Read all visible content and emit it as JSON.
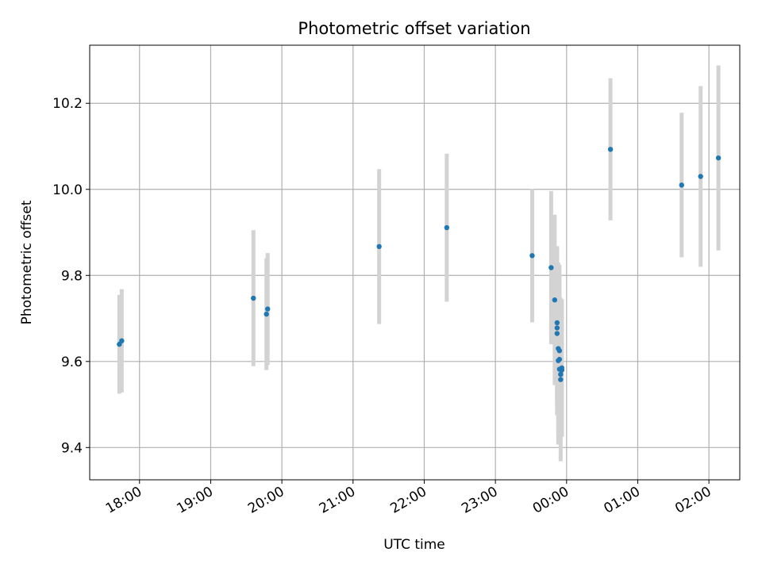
{
  "chart_data": {
    "type": "scatter",
    "title": "Photometric offset variation",
    "xlabel": "UTC time",
    "ylabel": "Photometric offset",
    "x_tick_labels": [
      "18:00",
      "19:00",
      "20:00",
      "21:00",
      "22:00",
      "23:00",
      "00:00",
      "01:00",
      "02:00"
    ],
    "y_tick_labels": [
      "9.4",
      "9.6",
      "9.8",
      "10.0",
      "10.2"
    ],
    "y_ticks": [
      9.4,
      9.6,
      9.8,
      10.0,
      10.2
    ],
    "ylim": [
      9.325,
      10.335
    ],
    "xlim": [
      "17:18",
      "02:26"
    ],
    "grid": true,
    "colors": {
      "point": "#1f77b4",
      "errorbar": "#d3d3d3",
      "grid": "#b0b0b0",
      "axis": "#000000"
    },
    "points": [
      {
        "x": "17:43",
        "y": 9.64,
        "err": 0.115
      },
      {
        "x": "17:45",
        "y": 9.648,
        "err": 0.12
      },
      {
        "x": "19:36",
        "y": 9.747,
        "err": 0.158
      },
      {
        "x": "19:47",
        "y": 9.71,
        "err": 0.13
      },
      {
        "x": "19:48",
        "y": 9.722,
        "err": 0.13
      },
      {
        "x": "21:22",
        "y": 9.867,
        "err": 0.18
      },
      {
        "x": "22:19",
        "y": 9.911,
        "err": 0.172
      },
      {
        "x": "23:31",
        "y": 9.846,
        "err": 0.155
      },
      {
        "x": "23:47",
        "y": 9.818,
        "err": 0.178
      },
      {
        "x": "23:50",
        "y": 9.743,
        "err": 0.198
      },
      {
        "x": "23:52",
        "y": 9.69,
        "err": 0.178
      },
      {
        "x": "23:52",
        "y": 9.678,
        "err": 0.185
      },
      {
        "x": "23:52",
        "y": 9.665,
        "err": 0.19
      },
      {
        "x": "23:53",
        "y": 9.63,
        "err": 0.2
      },
      {
        "x": "23:53",
        "y": 9.602,
        "err": 0.195
      },
      {
        "x": "23:54",
        "y": 9.625,
        "err": 0.2
      },
      {
        "x": "23:54",
        "y": 9.605,
        "err": 0.195
      },
      {
        "x": "23:54",
        "y": 9.582,
        "err": 0.175
      },
      {
        "x": "23:55",
        "y": 9.57,
        "err": 0.155
      },
      {
        "x": "23:55",
        "y": 9.558,
        "err": 0.19
      },
      {
        "x": "23:56",
        "y": 9.58,
        "err": 0.155
      },
      {
        "x": "23:56",
        "y": 9.585,
        "err": 0.16
      },
      {
        "x": "00:37",
        "y": 10.093,
        "err": 0.165
      },
      {
        "x": "01:37",
        "y": 10.01,
        "err": 0.168
      },
      {
        "x": "01:53",
        "y": 10.03,
        "err": 0.21
      },
      {
        "x": "02:08",
        "y": 10.073,
        "err": 0.215
      }
    ]
  }
}
